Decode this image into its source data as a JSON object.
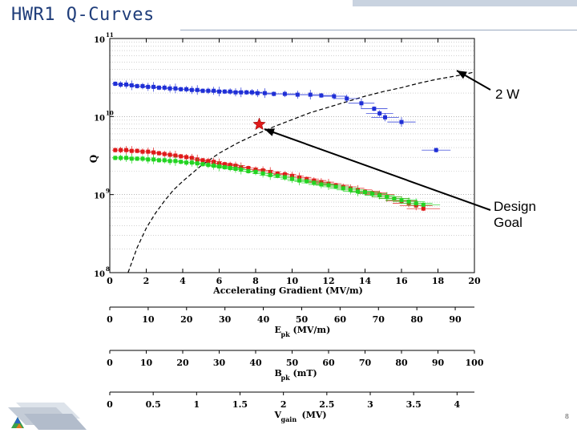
{
  "slide": {
    "title": "HWR1 Q-Curves",
    "page_number": "8"
  },
  "annotations": {
    "two_watt": "2 W",
    "design_goal_line1": "Design",
    "design_goal_line2": "Goal"
  },
  "colors": {
    "title": "#1f3d7a",
    "blue_series": "#1f2fd6",
    "red_series": "#e01a1a",
    "green_series": "#22d422"
  },
  "chart_data": {
    "type": "scatter",
    "title": "",
    "xlabel": "Accelerating Gradient (MV/m)",
    "ylabel": "Q",
    "xlim": [
      0,
      20
    ],
    "ylim_log10": [
      8,
      11
    ],
    "y_ticks": [
      {
        "base": "10",
        "exp": "8"
      },
      {
        "base": "10",
        "exp": "9"
      },
      {
        "base": "10",
        "exp": "10"
      },
      {
        "base": "10",
        "exp": "11"
      }
    ],
    "x_ticks": [
      "0",
      "2",
      "4",
      "6",
      "8",
      "10",
      "12",
      "14",
      "16",
      "18",
      "20"
    ],
    "series": [
      {
        "name": "blue",
        "x": [
          0.3,
          0.6,
          0.9,
          1.2,
          1.5,
          1.8,
          2.1,
          2.4,
          2.7,
          3.0,
          3.3,
          3.6,
          3.9,
          4.2,
          4.5,
          4.8,
          5.1,
          5.4,
          5.7,
          6.0,
          6.3,
          6.6,
          6.9,
          7.2,
          7.5,
          7.8,
          8.1,
          8.5,
          9.0,
          9.6,
          10.3,
          11.0,
          11.6,
          12.3,
          13.0,
          13.8,
          14.5,
          14.8,
          15.1,
          16.0,
          17.9
        ],
        "log10_q": [
          10.42,
          10.41,
          10.41,
          10.4,
          10.39,
          10.39,
          10.38,
          10.38,
          10.37,
          10.37,
          10.36,
          10.36,
          10.35,
          10.35,
          10.34,
          10.34,
          10.33,
          10.33,
          10.33,
          10.32,
          10.32,
          10.32,
          10.31,
          10.31,
          10.31,
          10.31,
          10.3,
          10.3,
          10.29,
          10.29,
          10.28,
          10.28,
          10.27,
          10.26,
          10.23,
          10.17,
          10.1,
          10.04,
          9.99,
          9.93,
          9.57
        ]
      },
      {
        "name": "red",
        "x": [
          0.3,
          0.6,
          0.9,
          1.2,
          1.5,
          1.8,
          2.1,
          2.4,
          2.7,
          3.0,
          3.3,
          3.6,
          3.9,
          4.2,
          4.5,
          4.8,
          5.1,
          5.4,
          5.7,
          6.0,
          6.3,
          6.6,
          6.9,
          7.2,
          7.6,
          8.0,
          8.4,
          8.8,
          9.2,
          9.6,
          10.0,
          10.4,
          10.8,
          11.2,
          11.6,
          12.0,
          12.4,
          12.8,
          13.2,
          13.6,
          14.0,
          14.4,
          14.8,
          15.2,
          15.6,
          16.0,
          16.4,
          16.8,
          17.2
        ],
        "log10_q": [
          9.57,
          9.57,
          9.57,
          9.56,
          9.56,
          9.55,
          9.55,
          9.54,
          9.53,
          9.52,
          9.51,
          9.5,
          9.49,
          9.48,
          9.47,
          9.45,
          9.44,
          9.43,
          9.42,
          9.4,
          9.39,
          9.38,
          9.37,
          9.35,
          9.34,
          9.32,
          9.31,
          9.29,
          9.27,
          9.26,
          9.24,
          9.22,
          9.2,
          9.18,
          9.16,
          9.14,
          9.12,
          9.1,
          9.08,
          9.06,
          9.04,
          9.02,
          9.0,
          8.97,
          8.95,
          8.92,
          8.89,
          8.86,
          8.82
        ]
      },
      {
        "name": "green",
        "x": [
          0.3,
          0.6,
          0.9,
          1.2,
          1.5,
          1.8,
          2.1,
          2.4,
          2.7,
          3.0,
          3.3,
          3.6,
          3.9,
          4.2,
          4.5,
          4.8,
          5.1,
          5.4,
          5.7,
          6.0,
          6.3,
          6.6,
          6.9,
          7.2,
          7.6,
          8.0,
          8.4,
          8.8,
          9.2,
          9.6,
          10.0,
          10.4,
          10.8,
          11.2,
          11.6,
          12.0,
          12.4,
          12.8,
          13.2,
          13.6,
          14.0,
          14.4,
          14.8,
          15.2,
          15.6,
          16.0,
          16.4,
          16.8,
          17.2
        ],
        "log10_q": [
          9.47,
          9.47,
          9.47,
          9.46,
          9.46,
          9.46,
          9.45,
          9.45,
          9.44,
          9.44,
          9.43,
          9.43,
          9.42,
          9.41,
          9.41,
          9.4,
          9.39,
          9.38,
          9.37,
          9.36,
          9.35,
          9.34,
          9.33,
          9.32,
          9.3,
          9.29,
          9.27,
          9.25,
          9.24,
          9.22,
          9.2,
          9.18,
          9.17,
          9.15,
          9.13,
          9.12,
          9.1,
          9.08,
          9.06,
          9.04,
          9.03,
          9.01,
          8.99,
          8.97,
          8.95,
          8.93,
          8.91,
          8.89,
          8.87
        ]
      }
    ],
    "curve_2W": {
      "label": "2 W",
      "x": [
        1.0,
        1.5,
        2.0,
        2.5,
        3.0,
        3.5,
        4.0,
        5.0,
        6.0,
        7.0,
        8.0,
        9.0,
        10.0,
        11.0,
        12.0,
        13.0,
        14.0,
        15.0,
        16.0,
        17.0,
        18.0,
        19.0,
        20.0
      ],
      "log10_q": [
        7.96,
        8.32,
        8.57,
        8.76,
        8.92,
        9.06,
        9.17,
        9.37,
        9.53,
        9.66,
        9.77,
        9.87,
        9.96,
        10.05,
        10.12,
        10.19,
        10.26,
        10.32,
        10.37,
        10.43,
        10.48,
        10.52,
        10.57
      ]
    },
    "design_goal": {
      "label": "Design Goal",
      "x": 8.2,
      "log10_q": 9.9
    },
    "secondary_axes": [
      {
        "label_main": "E",
        "label_sub": "pk",
        "label_unit": "(MV/m)",
        "min": 0,
        "max": 95,
        "ticks": [
          0,
          10,
          20,
          30,
          40,
          50,
          60,
          70,
          80,
          90
        ],
        "tick_labels": [
          "0",
          "10",
          "20",
          "30",
          "40",
          "50",
          "60",
          "70",
          "80",
          "90"
        ]
      },
      {
        "label_main": "B",
        "label_sub": "pk",
        "label_unit": "(mT)",
        "min": 0,
        "max": 100,
        "ticks": [
          0,
          10,
          20,
          30,
          40,
          50,
          60,
          70,
          80,
          90,
          100
        ],
        "tick_labels": [
          "0",
          "10",
          "20",
          "30",
          "40",
          "50",
          "60",
          "70",
          "80",
          "90",
          "100"
        ]
      },
      {
        "label_main": "V",
        "label_sub": "gain",
        "label_unit": "(MV)",
        "min": 0,
        "max": 4.2,
        "ticks": [
          0,
          0.5,
          1,
          1.5,
          2,
          2.5,
          3,
          3.5,
          4
        ],
        "tick_labels": [
          "0",
          "0.5",
          "1",
          "1.5",
          "2",
          "2.5",
          "3",
          "3.5",
          "4"
        ]
      }
    ]
  }
}
